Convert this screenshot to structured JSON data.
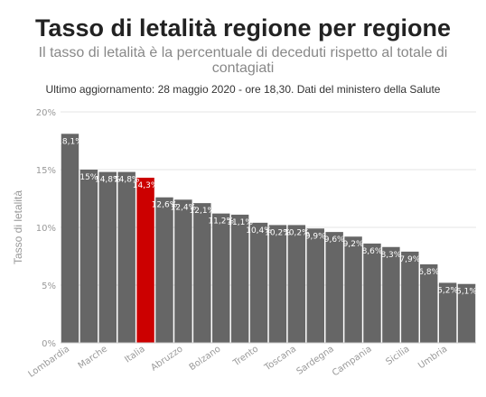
{
  "header": {
    "title": "Tasso di letalità regione per regione",
    "subtitle": "Il tasso di letalità è la percentuale di deceduti rispetto al totale di contagiati",
    "updated": "Ultimo aggiornamento: 28 maggio 2020 - ore 18,30. Dati del ministero della Salute"
  },
  "chart_data": {
    "type": "bar",
    "ylabel": "Tasso di letalità",
    "ylim": [
      0,
      20
    ],
    "yticks": [
      0,
      5,
      10,
      15,
      20
    ],
    "ytick_labels": [
      "0%",
      "5%",
      "10%",
      "15%",
      "20%"
    ],
    "grid": true,
    "categories": [
      "Lombardia",
      "",
      "Marche",
      "",
      "Italia",
      "",
      "Abruzzo",
      "",
      "Bolzano",
      "",
      "Trento",
      "",
      "Toscana",
      "",
      "Sardegna",
      "",
      "Campania",
      "",
      "Sicilia",
      "",
      "Umbria",
      ""
    ],
    "values": [
      18.1,
      15.0,
      14.8,
      14.8,
      14.3,
      12.6,
      12.4,
      12.1,
      11.2,
      11.1,
      10.4,
      10.2,
      10.2,
      9.9,
      9.6,
      9.2,
      8.6,
      8.3,
      7.9,
      6.8,
      5.2,
      5.1
    ],
    "data_labels": [
      "18,1%",
      "15%",
      "14,8%",
      "14,8%",
      "14,3%",
      "12,6%",
      "12,4%",
      "12,1%",
      "11,2%",
      "11,1%",
      "10,4%",
      "10,2%",
      "10,2%",
      "9,9%",
      "9,6%",
      "9,2%",
      "8,6%",
      "8,3%",
      "7,9%",
      "6,8%",
      "5,2%",
      "5,1%"
    ],
    "highlight_index": 4,
    "colors": {
      "bar": "#666666",
      "highlight": "#cc0000",
      "grid": "#e6e6e6",
      "axis": "#cccccc"
    }
  }
}
